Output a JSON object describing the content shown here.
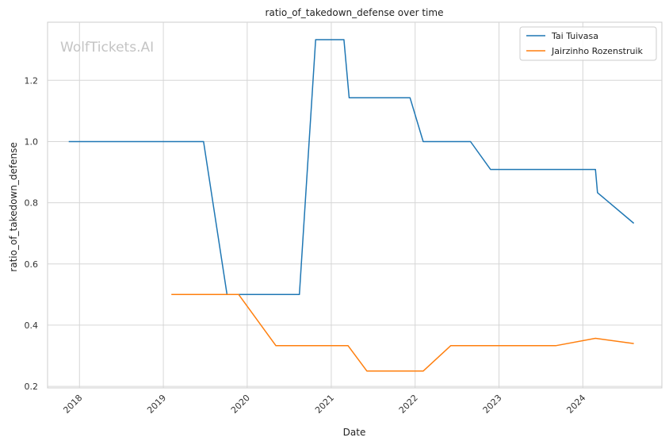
{
  "chart_data": {
    "type": "line",
    "title": "ratio_of_takedown_defense over time",
    "xlabel": "Date",
    "ylabel": "ratio_of_takedown_defense",
    "watermark": "WolfTickets.AI",
    "xlim": [
      "2017-08-15",
      "2024-12-10"
    ],
    "ylim": [
      0.195,
      1.39
    ],
    "x_ticks": [
      {
        "date": "2018-01-01",
        "label": "2018"
      },
      {
        "date": "2019-01-01",
        "label": "2019"
      },
      {
        "date": "2020-01-01",
        "label": "2020"
      },
      {
        "date": "2021-01-01",
        "label": "2021"
      },
      {
        "date": "2022-01-01",
        "label": "2022"
      },
      {
        "date": "2023-01-01",
        "label": "2023"
      },
      {
        "date": "2024-01-01",
        "label": "2024"
      }
    ],
    "y_ticks": [
      {
        "value": 0.2,
        "label": "0.2"
      },
      {
        "value": 0.4,
        "label": "0.4"
      },
      {
        "value": 0.6,
        "label": "0.6"
      },
      {
        "value": 0.8,
        "label": "0.8"
      },
      {
        "value": 1.0,
        "label": "1.0"
      },
      {
        "value": 1.2,
        "label": "1.2"
      }
    ],
    "grid": true,
    "legend_position": "top-right",
    "series": [
      {
        "name": "Tai Tuivasa",
        "color": "#1f77b4",
        "points": [
          {
            "x": "2017-11-15",
            "y": 1.0
          },
          {
            "x": "2019-06-25",
            "y": 1.0
          },
          {
            "x": "2019-10-05",
            "y": 0.5
          },
          {
            "x": "2020-08-15",
            "y": 0.5
          },
          {
            "x": "2020-10-25",
            "y": 1.333
          },
          {
            "x": "2021-02-25",
            "y": 1.333
          },
          {
            "x": "2021-03-20",
            "y": 1.143
          },
          {
            "x": "2021-12-10",
            "y": 1.143
          },
          {
            "x": "2022-02-05",
            "y": 1.0
          },
          {
            "x": "2022-08-30",
            "y": 1.0
          },
          {
            "x": "2022-11-25",
            "y": 0.909
          },
          {
            "x": "2024-02-25",
            "y": 0.909
          },
          {
            "x": "2024-03-05",
            "y": 0.833
          },
          {
            "x": "2024-08-10",
            "y": 0.733
          }
        ]
      },
      {
        "name": "Jairzinho Rozenstruik",
        "color": "#ff7f0e",
        "points": [
          {
            "x": "2019-02-05",
            "y": 0.5
          },
          {
            "x": "2019-11-25",
            "y": 0.5
          },
          {
            "x": "2020-05-05",
            "y": 0.333
          },
          {
            "x": "2021-03-15",
            "y": 0.333
          },
          {
            "x": "2021-06-05",
            "y": 0.25
          },
          {
            "x": "2022-02-05",
            "y": 0.25
          },
          {
            "x": "2022-06-05",
            "y": 0.333
          },
          {
            "x": "2023-09-05",
            "y": 0.333
          },
          {
            "x": "2024-02-25",
            "y": 0.357
          },
          {
            "x": "2024-08-10",
            "y": 0.34
          }
        ]
      }
    ]
  }
}
